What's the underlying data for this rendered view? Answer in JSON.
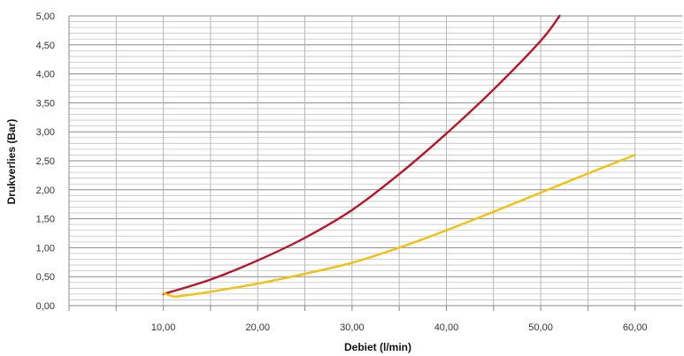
{
  "chart_data": {
    "type": "line",
    "title": "",
    "xlabel": "Debiet (l/min)",
    "ylabel": "Drukverlies (Bar)",
    "xlim": [
      0,
      65
    ],
    "ylim": [
      0,
      5
    ],
    "x_ticks": [
      "10,00",
      "20,00",
      "30,00",
      "40,00",
      "50,00",
      "60,00"
    ],
    "y_ticks": [
      "0,00",
      "0,50",
      "1,00",
      "1,50",
      "2,00",
      "2,50",
      "3,00",
      "3,50",
      "4,00",
      "4,50",
      "5,00"
    ],
    "grid": true,
    "legend": "none",
    "series": [
      {
        "color": "#b5172a",
        "x": [
          10,
          15,
          20,
          25,
          30,
          35,
          40,
          45,
          50,
          52
        ],
        "y": [
          0.2,
          0.45,
          0.78,
          1.17,
          1.65,
          2.27,
          2.97,
          3.73,
          4.57,
          5.0
        ]
      },
      {
        "color": "#f2c00f",
        "x": [
          10,
          11,
          12,
          15,
          20,
          25,
          30,
          35,
          40,
          45,
          50,
          55,
          60
        ],
        "y": [
          0.22,
          0.16,
          0.17,
          0.24,
          0.38,
          0.55,
          0.74,
          1.0,
          1.3,
          1.62,
          1.95,
          2.28,
          2.6
        ]
      }
    ]
  }
}
